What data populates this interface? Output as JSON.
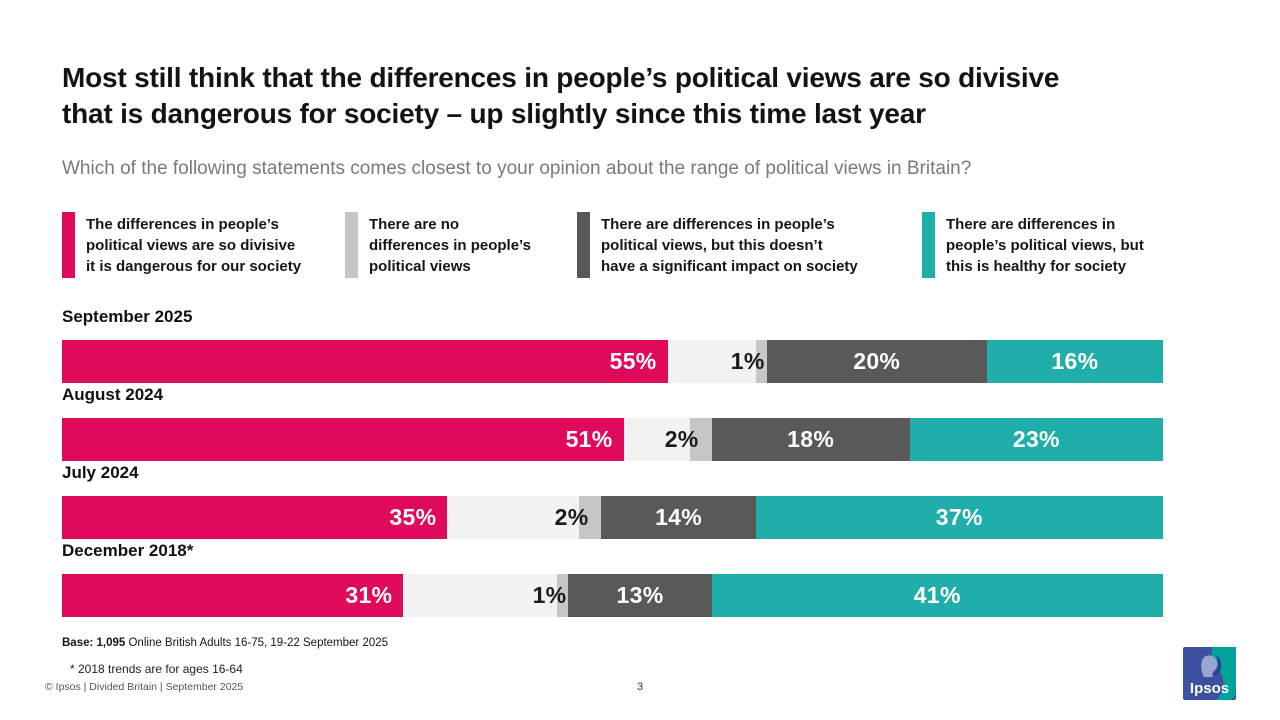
{
  "header": {
    "title": "Most still think that the differences in people’s political views are so divisive\nthat is dangerous for society – up slightly since this time last year",
    "subtitle": "Which of the following statements comes closest to your opinion about the range of political views in Britain?"
  },
  "colors": {
    "pink": "#E00A5B",
    "unlabelled_grey": "#F2F2F2",
    "light_grey": "#C6C6C6",
    "dark_grey": "#595959",
    "teal": "#20AEAB",
    "title_text": "#131313",
    "subtitle_text": "#7A7A7A",
    "logo_blue": "#3C4FA1",
    "logo_teal": "#00A29A"
  },
  "legend": {
    "items": [
      {
        "key": "dangerous",
        "color": "#E00A5B",
        "label": "The differences in people’s\npolitical views are so divisive\nit is dangerous for our society"
      },
      {
        "key": "no-differences",
        "color": "#C6C6C6",
        "label": "There are no\ndifferences in people’s\npolitical views"
      },
      {
        "key": "no-impact",
        "color": "#595959",
        "label": "There are differences in people’s\npolitical views, but this doesn’t\nhave a significant impact on society"
      },
      {
        "key": "healthy",
        "color": "#20AEAB",
        "label": "There are differences in\npeople’s political views, but\nthis is healthy for society"
      }
    ]
  },
  "chart_data": {
    "type": "bar",
    "stacked": true,
    "orientation": "horizontal",
    "unit": "%",
    "xlim": [
      0,
      100
    ],
    "grid": false,
    "legend_position": "top",
    "categories": [
      "September 2025",
      "August 2024",
      "July 2024",
      "December 2018*"
    ],
    "series": [
      {
        "key": "dangerous",
        "name": "The differences in people’s political views are so divisive it is dangerous for our society",
        "color": "#E00A5B",
        "values": [
          55,
          51,
          35,
          31
        ],
        "labelled": true
      },
      {
        "key": "unlabelled",
        "name": "(unlabelled remainder segment)",
        "color": "#F2F2F2",
        "values": [
          8,
          6,
          12,
          14
        ],
        "labelled": false
      },
      {
        "key": "no-differences",
        "name": "There are no differences in people’s political views",
        "color": "#C6C6C6",
        "values": [
          1,
          2,
          2,
          1
        ],
        "labelled": true,
        "label_placed_outside": true
      },
      {
        "key": "no-impact",
        "name": "There are differences in people’s political views, but this doesn’t have a significant impact on society",
        "color": "#595959",
        "values": [
          20,
          18,
          14,
          13
        ],
        "labelled": true
      },
      {
        "key": "healthy",
        "name": "There are differences in people’s political views, but this is healthy for society",
        "color": "#20AEAB",
        "values": [
          16,
          23,
          37,
          41
        ],
        "labelled": true
      }
    ]
  },
  "notes": {
    "base_bold": "Base: 1,095",
    "base_rest": " Online British Adults 16-75, 19-22 September 2025",
    "footnote": "* 2018 trends are for ages 16-64"
  },
  "footer": {
    "copyright": "© Ipsos | Divided Britain | September 2025",
    "page_number": "3",
    "logo_text": "Ipsos"
  }
}
